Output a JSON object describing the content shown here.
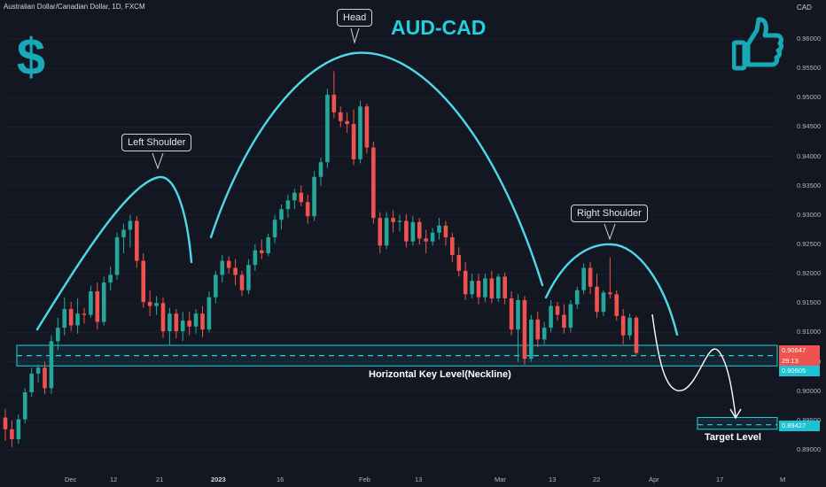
{
  "header": {
    "symbol_line": "Australian Dollar/Canadian Dollar, 1D, FXCM",
    "title": "AUD-CAD",
    "currency": "CAD"
  },
  "annotations": {
    "head": "Head",
    "left_shoulder": "Left Shoulder",
    "right_shoulder": "Right Shoulder",
    "neckline": "Horizontal Key Level(Neckline)",
    "target": "Target Level"
  },
  "price_labels": {
    "last_price": "0.90647",
    "countdown": "29:13",
    "neckline_price": "0.90605",
    "target_price": "0.89427"
  },
  "icons": {
    "left": "dollar-sign-icon",
    "right": "thumbs-up-icon"
  },
  "colors": {
    "background": "#131722",
    "up": "#26a69a",
    "down": "#ef5350",
    "accent": "#22d0e0",
    "arcs": "#4dd9e8"
  },
  "chart_data": {
    "type": "candlestick",
    "title": "AUD-CAD",
    "ylim": [
      0.8865,
      0.9625
    ],
    "y_ticks": [
      "0.96000",
      "0.95500",
      "0.95000",
      "0.94500",
      "0.94000",
      "0.93500",
      "0.93000",
      "0.92500",
      "0.92000",
      "0.91500",
      "0.91000",
      "0.90500",
      "0.90000",
      "0.89500",
      "0.89000"
    ],
    "x_ticks": [
      "Dec",
      "12",
      "21",
      "2023",
      "16",
      "Feb",
      "13",
      "Mar",
      "13",
      "22",
      "Apr",
      "17",
      "M"
    ],
    "neckline_level": 0.90605,
    "neckline_zone": [
      0.9043,
      0.9078
    ],
    "target_level": 0.89427,
    "target_zone": [
      0.8935,
      0.8955
    ],
    "last_price": 0.90647,
    "candles": [
      [
        0.8955,
        0.897,
        0.8915,
        0.8935
      ],
      [
        0.8935,
        0.895,
        0.8905,
        0.8918
      ],
      [
        0.8918,
        0.896,
        0.891,
        0.8952
      ],
      [
        0.8952,
        0.9005,
        0.8945,
        0.8998
      ],
      [
        0.8998,
        0.904,
        0.899,
        0.903
      ],
      [
        0.903,
        0.9045,
        0.9015,
        0.904
      ],
      [
        0.904,
        0.905,
        0.8995,
        0.9005
      ],
      [
        0.9005,
        0.9095,
        0.8995,
        0.9085
      ],
      [
        0.9085,
        0.9125,
        0.907,
        0.9108
      ],
      [
        0.9108,
        0.916,
        0.9095,
        0.914
      ],
      [
        0.914,
        0.9152,
        0.9102,
        0.9112
      ],
      [
        0.9112,
        0.9158,
        0.9098,
        0.9132
      ],
      [
        0.9132,
        0.9142,
        0.9115,
        0.913
      ],
      [
        0.913,
        0.918,
        0.9125,
        0.917
      ],
      [
        0.917,
        0.9185,
        0.9105,
        0.9118
      ],
      [
        0.9118,
        0.9195,
        0.9112,
        0.9185
      ],
      [
        0.9185,
        0.9212,
        0.9172,
        0.9198
      ],
      [
        0.9198,
        0.927,
        0.919,
        0.9262
      ],
      [
        0.9262,
        0.9285,
        0.9235,
        0.9275
      ],
      [
        0.9275,
        0.93,
        0.9245,
        0.929
      ],
      [
        0.929,
        0.9298,
        0.921,
        0.9222
      ],
      [
        0.9222,
        0.9235,
        0.9142,
        0.9152
      ],
      [
        0.9152,
        0.9172,
        0.9128,
        0.9145
      ],
      [
        0.9145,
        0.9162,
        0.913,
        0.915
      ],
      [
        0.915,
        0.916,
        0.909,
        0.9102
      ],
      [
        0.9102,
        0.9142,
        0.9078,
        0.9132
      ],
      [
        0.9132,
        0.914,
        0.909,
        0.9102
      ],
      [
        0.9102,
        0.9135,
        0.9085,
        0.912
      ],
      [
        0.912,
        0.9135,
        0.9095,
        0.911
      ],
      [
        0.911,
        0.914,
        0.9098,
        0.9132
      ],
      [
        0.9132,
        0.9145,
        0.9092,
        0.9105
      ],
      [
        0.9105,
        0.917,
        0.91,
        0.916
      ],
      [
        0.916,
        0.9205,
        0.915,
        0.9198
      ],
      [
        0.9198,
        0.9232,
        0.9185,
        0.9222
      ],
      [
        0.9222,
        0.923,
        0.92,
        0.921
      ],
      [
        0.921,
        0.9225,
        0.918,
        0.9198
      ],
      [
        0.9198,
        0.9205,
        0.9162,
        0.9172
      ],
      [
        0.9172,
        0.9225,
        0.9165,
        0.9215
      ],
      [
        0.9215,
        0.925,
        0.9205,
        0.924
      ],
      [
        0.924,
        0.9258,
        0.9225,
        0.9235
      ],
      [
        0.9235,
        0.9268,
        0.923,
        0.9262
      ],
      [
        0.9262,
        0.93,
        0.9252,
        0.9292
      ],
      [
        0.9292,
        0.9318,
        0.9275,
        0.931
      ],
      [
        0.931,
        0.9335,
        0.9295,
        0.9325
      ],
      [
        0.9325,
        0.9345,
        0.931,
        0.9338
      ],
      [
        0.9338,
        0.935,
        0.9315,
        0.9322
      ],
      [
        0.9322,
        0.9335,
        0.9285,
        0.9298
      ],
      [
        0.9298,
        0.9375,
        0.929,
        0.9365
      ],
      [
        0.9365,
        0.9398,
        0.935,
        0.939
      ],
      [
        0.939,
        0.9515,
        0.938,
        0.9505
      ],
      [
        0.9505,
        0.9545,
        0.9465,
        0.9475
      ],
      [
        0.9475,
        0.9485,
        0.945,
        0.946
      ],
      [
        0.946,
        0.9475,
        0.944,
        0.9455
      ],
      [
        0.9455,
        0.948,
        0.9385,
        0.9395
      ],
      [
        0.9395,
        0.9495,
        0.9388,
        0.9485
      ],
      [
        0.9485,
        0.949,
        0.9405,
        0.9415
      ],
      [
        0.9415,
        0.9425,
        0.9285,
        0.9295
      ],
      [
        0.9295,
        0.9305,
        0.9235,
        0.9248
      ],
      [
        0.9248,
        0.9305,
        0.9242,
        0.9295
      ],
      [
        0.9295,
        0.9308,
        0.927,
        0.9288
      ],
      [
        0.9288,
        0.93,
        0.9272,
        0.929
      ],
      [
        0.929,
        0.9302,
        0.9245,
        0.9255
      ],
      [
        0.9255,
        0.9298,
        0.9248,
        0.9288
      ],
      [
        0.9288,
        0.9295,
        0.925,
        0.926
      ],
      [
        0.926,
        0.9275,
        0.9235,
        0.9255
      ],
      [
        0.9255,
        0.9278,
        0.9248,
        0.927
      ],
      [
        0.927,
        0.9295,
        0.9258,
        0.9282
      ],
      [
        0.9282,
        0.929,
        0.9248,
        0.9262
      ],
      [
        0.9262,
        0.927,
        0.922,
        0.9232
      ],
      [
        0.9232,
        0.9245,
        0.9195,
        0.9205
      ],
      [
        0.9205,
        0.922,
        0.9155,
        0.9165
      ],
      [
        0.9165,
        0.92,
        0.9158,
        0.9188
      ],
      [
        0.9188,
        0.92,
        0.9148,
        0.916
      ],
      [
        0.916,
        0.92,
        0.9152,
        0.9192
      ],
      [
        0.9192,
        0.9205,
        0.915,
        0.9158
      ],
      [
        0.9158,
        0.92,
        0.9152,
        0.9195
      ],
      [
        0.9195,
        0.9202,
        0.9148,
        0.9158
      ],
      [
        0.9158,
        0.917,
        0.9095,
        0.9105
      ],
      [
        0.9105,
        0.9165,
        0.905,
        0.9155
      ],
      [
        0.9155,
        0.9162,
        0.9045,
        0.9055
      ],
      [
        0.9055,
        0.913,
        0.905,
        0.9122
      ],
      [
        0.9122,
        0.9135,
        0.9075,
        0.9088
      ],
      [
        0.9088,
        0.9118,
        0.908,
        0.9108
      ],
      [
        0.9108,
        0.9155,
        0.91,
        0.9145
      ],
      [
        0.9145,
        0.9152,
        0.912,
        0.913
      ],
      [
        0.913,
        0.9148,
        0.9098,
        0.9108
      ],
      [
        0.9108,
        0.9155,
        0.91,
        0.9148
      ],
      [
        0.9148,
        0.9178,
        0.914,
        0.9172
      ],
      [
        0.9172,
        0.9218,
        0.9165,
        0.921
      ],
      [
        0.921,
        0.922,
        0.9165,
        0.9178
      ],
      [
        0.9178,
        0.92,
        0.9125,
        0.9135
      ],
      [
        0.9135,
        0.9172,
        0.9128,
        0.9168
      ],
      [
        0.9168,
        0.9228,
        0.9158,
        0.9165
      ],
      [
        0.9165,
        0.9172,
        0.912,
        0.9128
      ],
      [
        0.9128,
        0.914,
        0.908,
        0.9095
      ],
      [
        0.9095,
        0.9132,
        0.9088,
        0.9125
      ],
      [
        0.9125,
        0.9128,
        0.9062,
        0.9065
      ]
    ]
  }
}
